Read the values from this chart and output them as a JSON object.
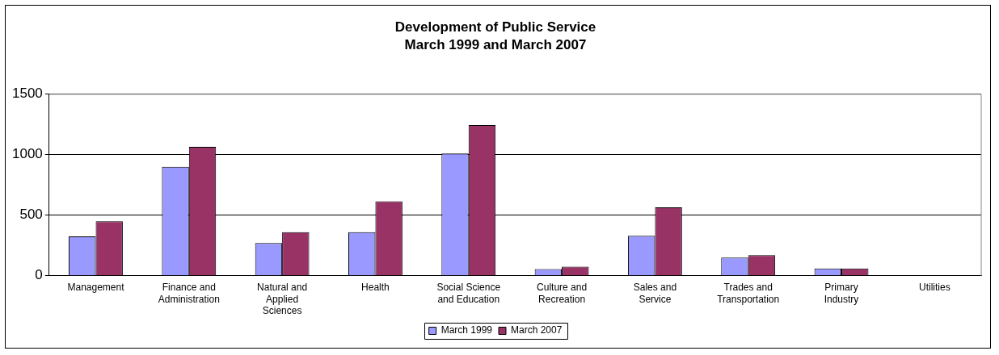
{
  "chart_data": {
    "type": "bar",
    "title": "Development of Public Service",
    "subtitle": "March 1999 and March 2007",
    "categories": [
      "Management",
      "Finance and Administration",
      "Natural and Applied Sciences",
      "Health",
      "Social Science and Education",
      "Culture and Recreation",
      "Sales and Service",
      "Trades and Transportation",
      "Primary Industry",
      "Utilities"
    ],
    "series": [
      {
        "name": "March 1999",
        "color": "#9999ff",
        "values": [
          325,
          900,
          270,
          360,
          1010,
          55,
          330,
          150,
          60,
          0
        ]
      },
      {
        "name": "March 2007",
        "color": "#993366",
        "values": [
          450,
          1065,
          360,
          615,
          1245,
          75,
          565,
          170,
          60,
          0
        ]
      }
    ],
    "ylim": [
      0,
      1500
    ],
    "yticks": [
      0,
      500,
      1000,
      1500
    ],
    "grid": "y",
    "legend": "bottom"
  }
}
